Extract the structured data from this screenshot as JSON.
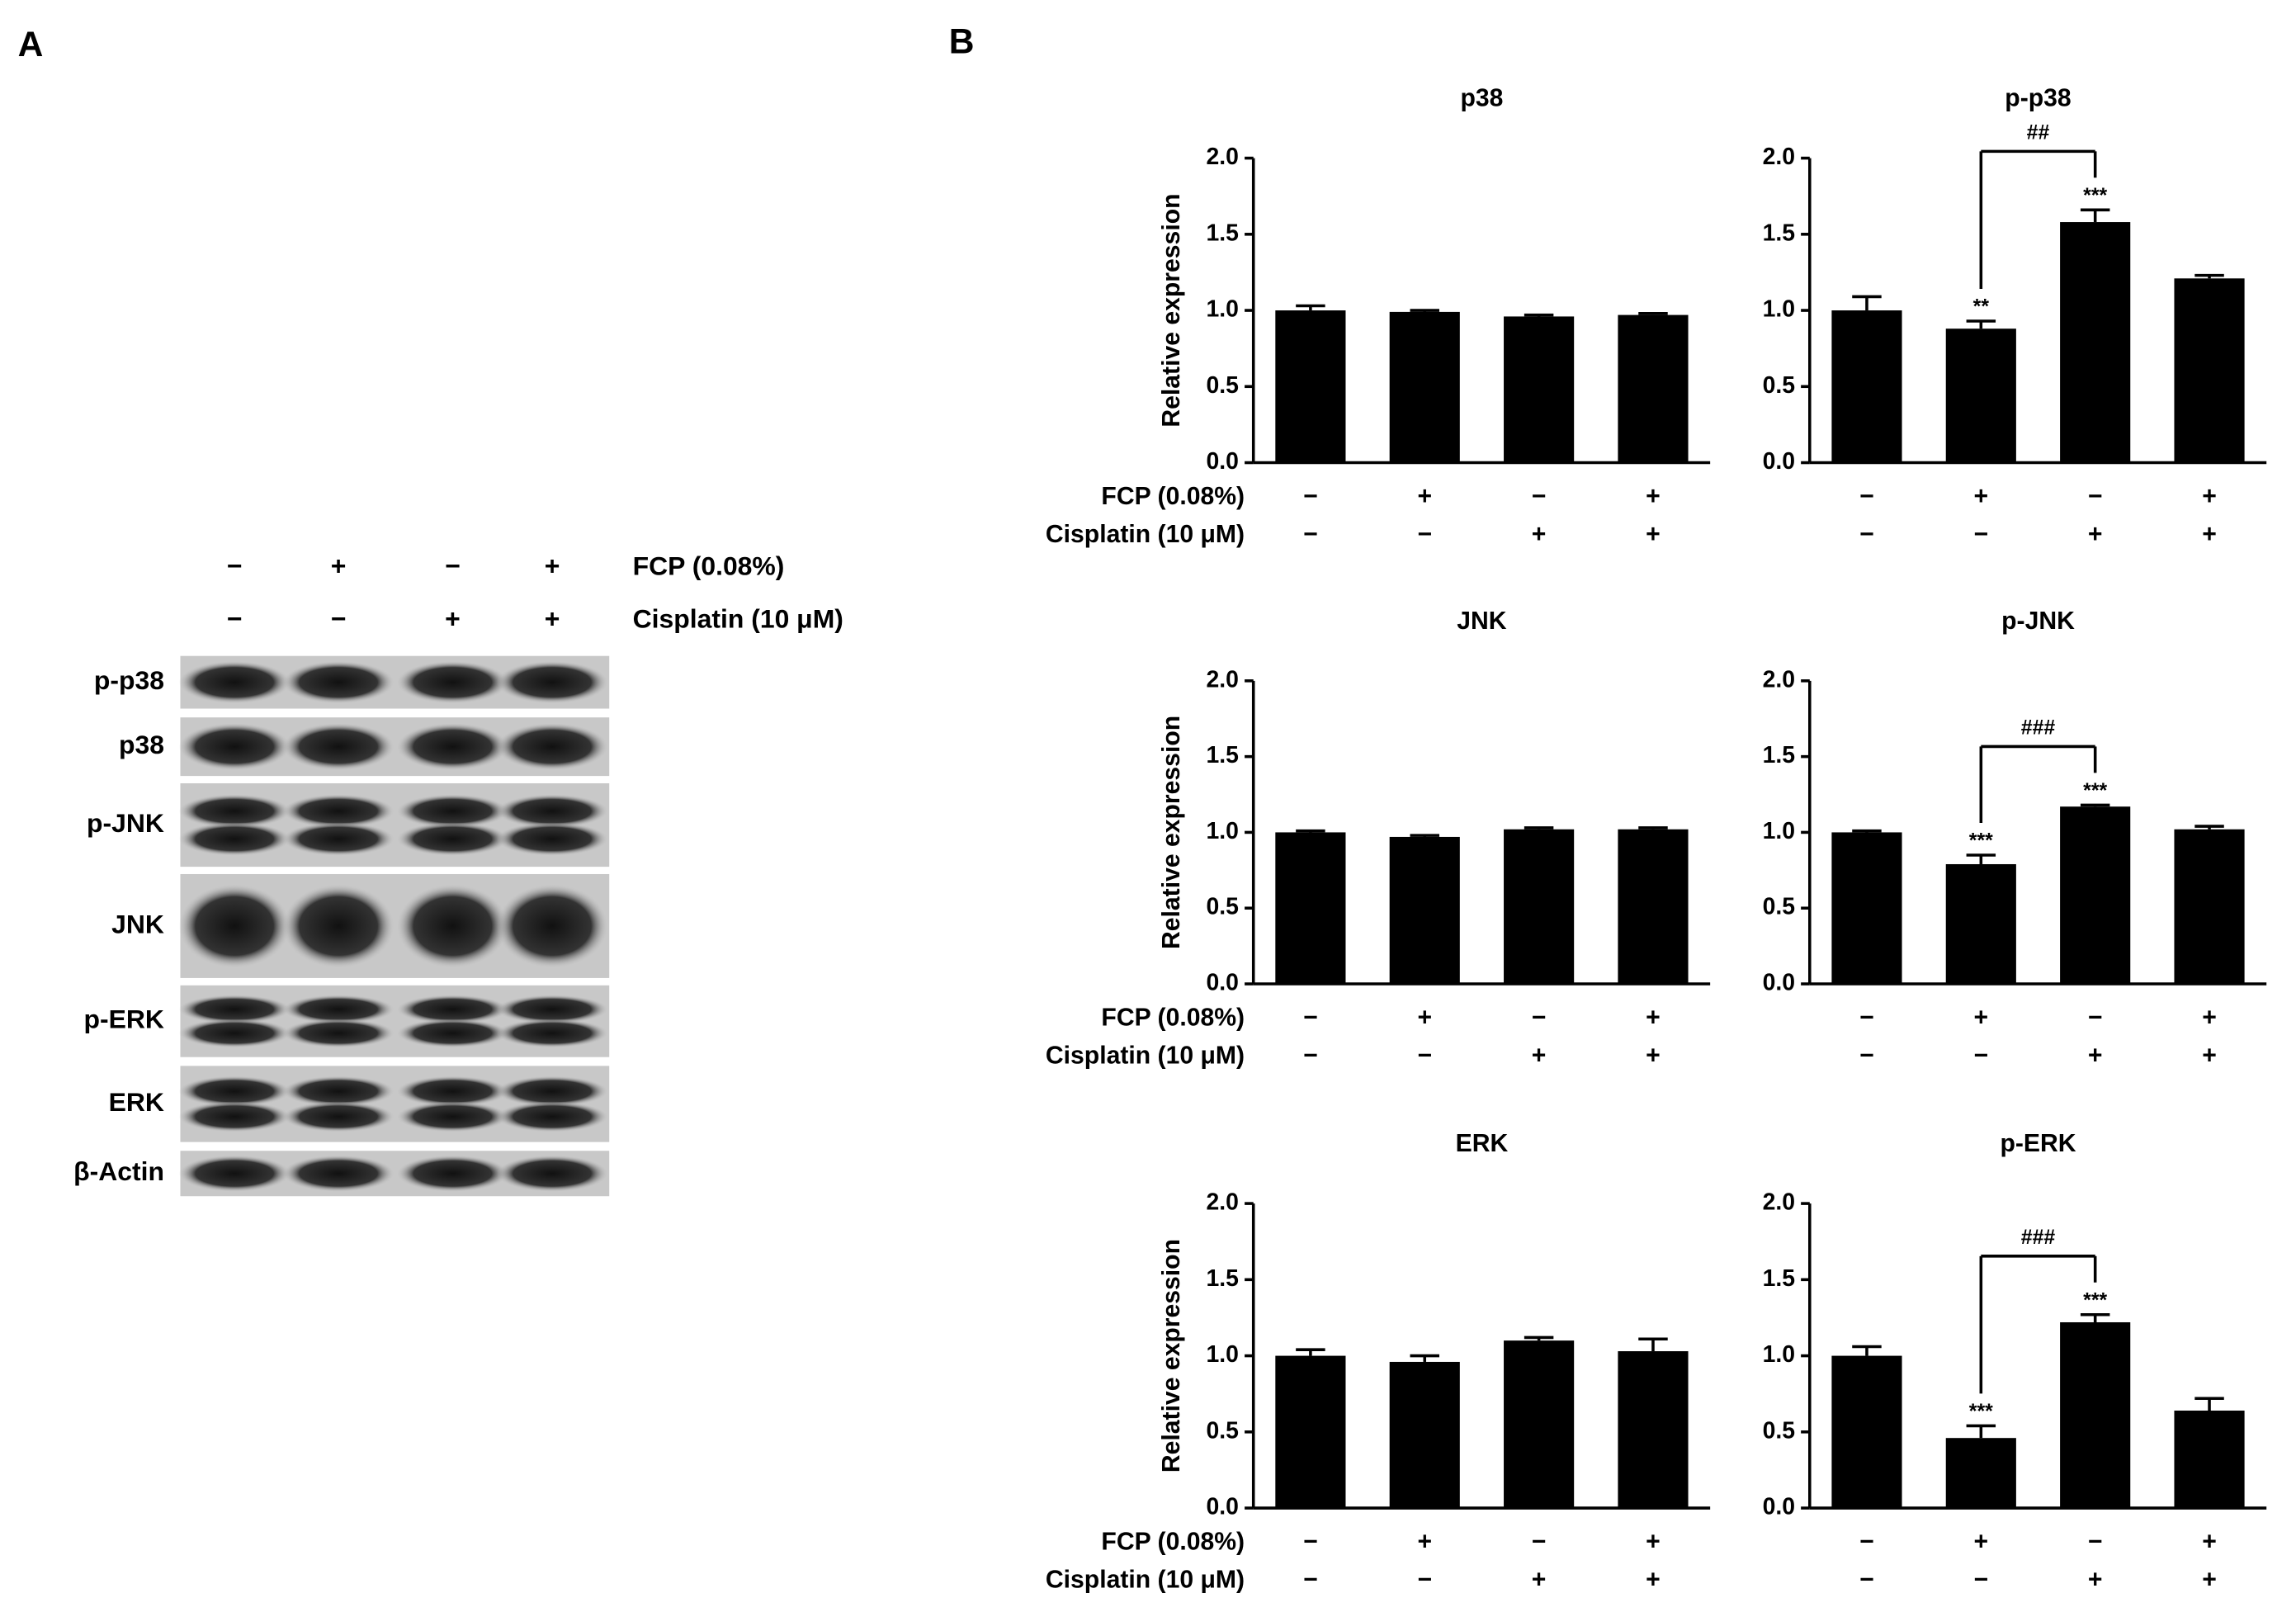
{
  "panel_labels": [
    "A",
    "B"
  ],
  "blot": {
    "treatments": [
      {
        "label": "FCP (0.08%)",
        "signs": [
          "−",
          "+",
          "−",
          "+"
        ]
      },
      {
        "label": "Cisplatin (10 μM)",
        "signs": [
          "−",
          "−",
          "+",
          "+"
        ]
      }
    ],
    "rows": [
      "p-p38",
      "p38",
      "p-JNK",
      "JNK",
      "p-ERK",
      "ERK",
      "β-Actin"
    ]
  },
  "chart_data": [
    {
      "type": "bar",
      "title": "p38",
      "ylabel": "Relative expression",
      "treatments": [
        {
          "label": "FCP (0.08%)",
          "signs": [
            "−",
            "+",
            "−",
            "+"
          ]
        },
        {
          "label": "Cisplatin (10 μM)",
          "signs": [
            "−",
            "−",
            "+",
            "+"
          ]
        }
      ],
      "values": [
        1.0,
        0.99,
        0.96,
        0.97
      ],
      "errors": [
        0.03,
        0.01,
        0.01,
        0.01
      ],
      "color": "#000000",
      "ylim": [
        0,
        2
      ],
      "yticks": [
        {
          "value": 0,
          "label": "0.0"
        },
        {
          "value": 0.5,
          "label": "0.5"
        },
        {
          "value": 1,
          "label": "1.0"
        },
        {
          "value": 1.5,
          "label": "1.5"
        },
        {
          "value": 2,
          "label": "2.0"
        }
      ]
    },
    {
      "type": "bar",
      "title": "p-p38",
      "treatments": [
        {
          "signs": [
            "−",
            "+",
            "−",
            "+"
          ]
        },
        {
          "signs": [
            "−",
            "−",
            "+",
            "+"
          ]
        }
      ],
      "values": [
        1.0,
        0.88,
        1.58,
        1.21
      ],
      "errors": [
        0.09,
        0.05,
        0.08,
        0.02
      ],
      "color": "#000000",
      "star_labels": [
        null,
        "**",
        "***",
        null
      ],
      "bracket": {
        "between": [
          2,
          3
        ],
        "label": "##"
      },
      "ylim": [
        0,
        2
      ],
      "yticks": [
        {
          "value": 0,
          "label": "0.0"
        },
        {
          "value": 0.5,
          "label": "0.5"
        },
        {
          "value": 1,
          "label": "1.0"
        },
        {
          "value": 1.5,
          "label": "1.5"
        },
        {
          "value": 2,
          "label": "2.0"
        }
      ]
    },
    {
      "type": "bar",
      "title": "JNK",
      "ylabel": "Relative expression",
      "treatments": [
        {
          "label": "FCP (0.08%)",
          "signs": [
            "−",
            "+",
            "−",
            "+"
          ]
        },
        {
          "label": "Cisplatin (10 μM)",
          "signs": [
            "−",
            "−",
            "+",
            "+"
          ]
        }
      ],
      "values": [
        1.0,
        0.97,
        1.02,
        1.02
      ],
      "errors": [
        0.01,
        0.01,
        0.01,
        0.01
      ],
      "color": "#000000",
      "ylim": [
        0,
        2
      ],
      "yticks": [
        {
          "value": 0,
          "label": "0.0"
        },
        {
          "value": 0.5,
          "label": "0.5"
        },
        {
          "value": 1,
          "label": "1.0"
        },
        {
          "value": 1.5,
          "label": "1.5"
        },
        {
          "value": 2,
          "label": "2.0"
        }
      ]
    },
    {
      "type": "bar",
      "title": "p-JNK",
      "treatments": [
        {
          "signs": [
            "−",
            "+",
            "−",
            "+"
          ]
        },
        {
          "signs": [
            "−",
            "−",
            "+",
            "+"
          ]
        }
      ],
      "values": [
        1.0,
        0.79,
        1.17,
        1.02
      ],
      "errors": [
        0.01,
        0.06,
        0.01,
        0.02
      ],
      "color": "#000000",
      "star_labels": [
        null,
        "***",
        "***",
        null
      ],
      "bracket": {
        "between": [
          2,
          3
        ],
        "label": "###"
      },
      "ylim": [
        0,
        2
      ],
      "yticks": [
        {
          "value": 0,
          "label": "0.0"
        },
        {
          "value": 0.5,
          "label": "0.5"
        },
        {
          "value": 1,
          "label": "1.0"
        },
        {
          "value": 1.5,
          "label": "1.5"
        },
        {
          "value": 2,
          "label": "2.0"
        }
      ]
    },
    {
      "type": "bar",
      "title": "ERK",
      "ylabel": "Relative expression",
      "treatments": [
        {
          "label": "FCP (0.08%)",
          "signs": [
            "−",
            "+",
            "−",
            "+"
          ]
        },
        {
          "label": "Cisplatin (10 μM)",
          "signs": [
            "−",
            "−",
            "+",
            "+"
          ]
        }
      ],
      "values": [
        1.0,
        0.96,
        1.1,
        1.03
      ],
      "errors": [
        0.04,
        0.04,
        0.02,
        0.08
      ],
      "color": "#000000",
      "ylim": [
        0,
        2
      ],
      "yticks": [
        {
          "value": 0,
          "label": "0.0"
        },
        {
          "value": 0.5,
          "label": "0.5"
        },
        {
          "value": 1,
          "label": "1.0"
        },
        {
          "value": 1.5,
          "label": "1.5"
        },
        {
          "value": 2,
          "label": "2.0"
        }
      ]
    },
    {
      "type": "bar",
      "title": "p-ERK",
      "treatments": [
        {
          "signs": [
            "−",
            "+",
            "−",
            "+"
          ]
        },
        {
          "signs": [
            "−",
            "−",
            "+",
            "+"
          ]
        }
      ],
      "values": [
        1.0,
        0.46,
        1.22,
        0.64
      ],
      "errors": [
        0.06,
        0.08,
        0.05,
        0.08
      ],
      "color": "#000000",
      "star_labels": [
        null,
        "***",
        "***",
        null
      ],
      "bracket": {
        "between": [
          2,
          3
        ],
        "label": "###"
      },
      "ylim": [
        0,
        2
      ],
      "yticks": [
        {
          "value": 0,
          "label": "0.0"
        },
        {
          "value": 0.5,
          "label": "0.5"
        },
        {
          "value": 1,
          "label": "1.0"
        },
        {
          "value": 1.5,
          "label": "1.5"
        },
        {
          "value": 2,
          "label": "2.0"
        }
      ]
    }
  ]
}
